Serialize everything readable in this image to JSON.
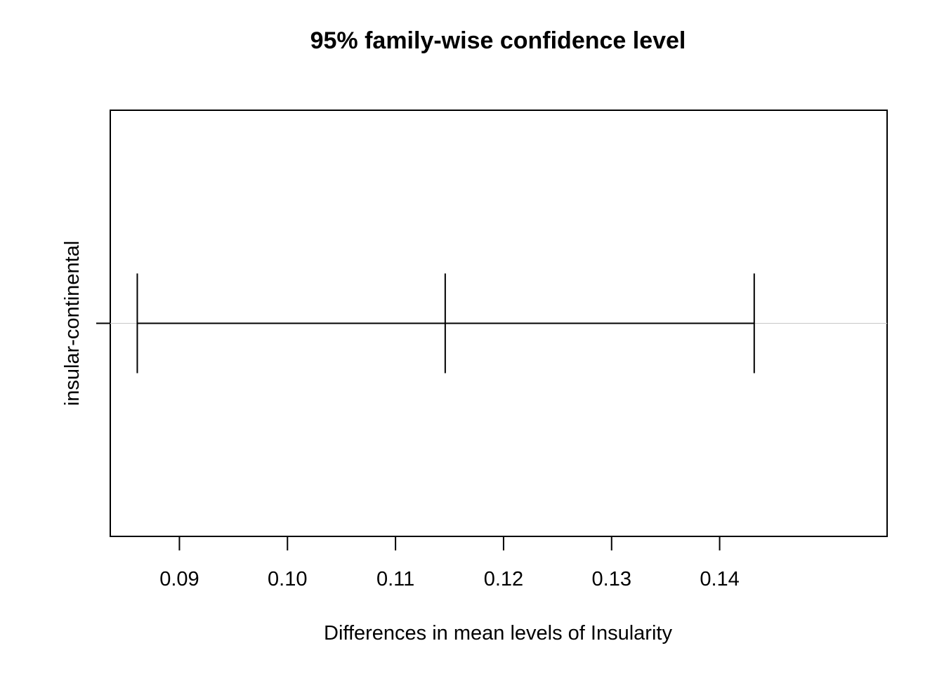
{
  "chart_data": {
    "type": "errorbar",
    "title": "95% family-wise confidence level",
    "xlabel": "Differences in mean levels of Insularity",
    "ylabel": "",
    "xlim": [
      0.0836,
      0.1555
    ],
    "x_ticks": [
      0.09,
      0.1,
      0.11,
      0.12,
      0.13,
      0.14
    ],
    "x_tick_labels": [
      "0.09",
      "0.10",
      "0.11",
      "0.12",
      "0.13",
      "0.14"
    ],
    "categories": [
      "insular-continental"
    ],
    "intervals": [
      {
        "label": "insular-continental",
        "lower": 0.0861,
        "estimate": 0.1146,
        "upper": 0.1432
      }
    ],
    "reference_line": 0,
    "grid": false,
    "legend": "none",
    "colors": {
      "line": "#000000",
      "reference": "#c8c8c8",
      "background": "#ffffff"
    }
  }
}
